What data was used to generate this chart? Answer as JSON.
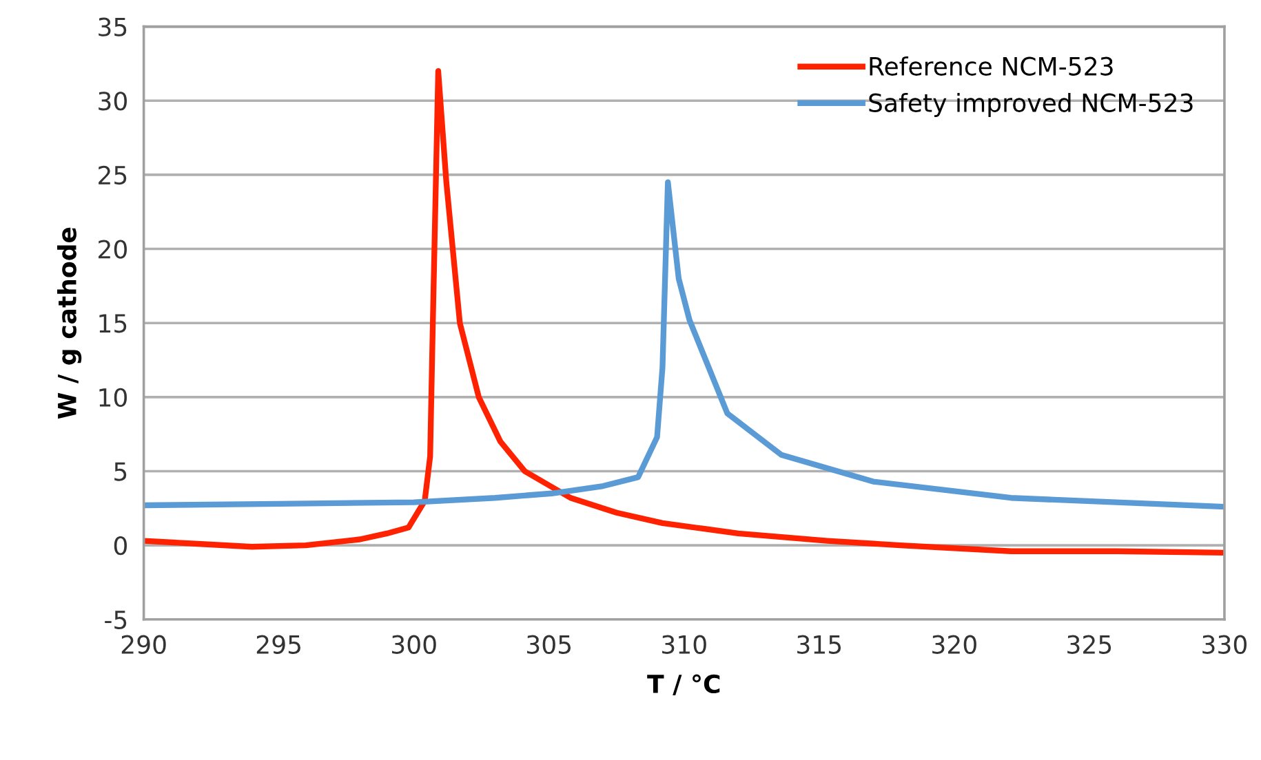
{
  "chart_data": {
    "type": "line",
    "xlabel": "T / °C",
    "ylabel": "W / g cathode",
    "xlim": [
      290,
      330
    ],
    "xticks": [
      290,
      295,
      300,
      305,
      310,
      315,
      320,
      325,
      330
    ],
    "ylim": [
      -5,
      35
    ],
    "yticks": [
      -5,
      0,
      5,
      10,
      15,
      20,
      25,
      30,
      35
    ],
    "grid": "y",
    "legend": "top right",
    "line_style": "solid",
    "series": [
      {
        "name": "Reference NCM-523",
        "color": "#ff2200",
        "x": [
          290,
          292,
          294,
          296,
          298,
          299,
          299.8,
          300.4,
          300.6,
          300.7,
          300.9,
          301.2,
          301.7,
          302.4,
          303.2,
          304.1,
          305.8,
          307.5,
          309.2,
          312,
          315.3,
          318,
          322.1,
          326,
          330
        ],
        "values": [
          0.3,
          0.1,
          -0.1,
          0,
          0.4,
          0.8,
          1.2,
          3,
          6,
          15,
          32,
          24.5,
          15,
          10,
          7,
          5,
          3.2,
          2.2,
          1.5,
          0.8,
          0.3,
          0,
          -0.4,
          -0.4,
          -0.5
        ]
      },
      {
        "name": "Safety improved NCM-523",
        "color": "#5b9bd5",
        "x": [
          290,
          295,
          300,
          303,
          305.1,
          307,
          308.3,
          309,
          309.2,
          309.4,
          309.8,
          310.2,
          311.6,
          313.6,
          317,
          322.1,
          326,
          330
        ],
        "values": [
          2.7,
          2.8,
          2.9,
          3.2,
          3.5,
          4,
          4.6,
          7.3,
          12,
          24.5,
          18,
          15.2,
          8.9,
          6.1,
          4.3,
          3.2,
          2.9,
          2.6
        ]
      }
    ]
  }
}
